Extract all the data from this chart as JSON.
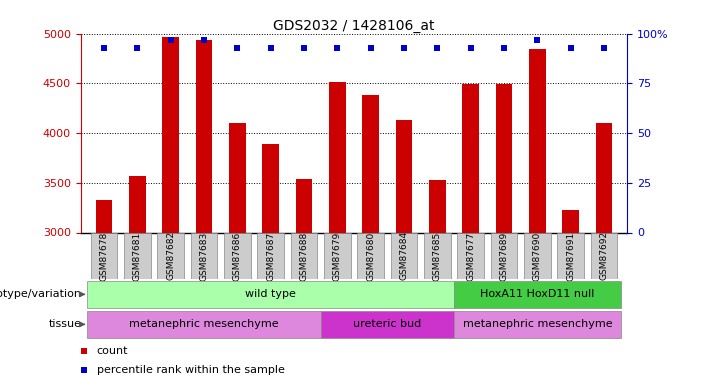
{
  "title": "GDS2032 / 1428106_at",
  "samples": [
    "GSM87678",
    "GSM87681",
    "GSM87682",
    "GSM87683",
    "GSM87686",
    "GSM87687",
    "GSM87688",
    "GSM87679",
    "GSM87680",
    "GSM87684",
    "GSM87685",
    "GSM87677",
    "GSM87689",
    "GSM87690",
    "GSM87691",
    "GSM87692"
  ],
  "counts": [
    3330,
    3570,
    4970,
    4940,
    4100,
    3890,
    3540,
    4510,
    4380,
    4130,
    3530,
    4490,
    4490,
    4850,
    3230,
    4100
  ],
  "percentile_ranks": [
    93,
    93,
    97,
    97,
    93,
    93,
    93,
    93,
    93,
    93,
    93,
    93,
    93,
    97,
    93,
    93
  ],
  "ymin": 3000,
  "ymax": 5000,
  "yticks": [
    3000,
    3500,
    4000,
    4500,
    5000
  ],
  "right_yticks_vals": [
    0,
    25,
    50,
    75,
    100
  ],
  "right_yticks_labels": [
    "0",
    "25",
    "50",
    "75",
    "100%"
  ],
  "bar_color": "#cc0000",
  "percentile_color": "#0000cc",
  "background_color": "#ffffff",
  "grid_color": "#000000",
  "left_label_color": "#cc0000",
  "right_label_color": "#0000cc",
  "title_color": "#000000",
  "bar_width": 0.5,
  "genotype_groups": [
    {
      "label": "wild type",
      "start": 0,
      "end": 10,
      "color": "#aaffaa"
    },
    {
      "label": "HoxA11 HoxD11 null",
      "start": 11,
      "end": 15,
      "color": "#44cc44"
    }
  ],
  "tissue_groups": [
    {
      "label": "metanephric mesenchyme",
      "start": 0,
      "end": 6,
      "color": "#dd88dd"
    },
    {
      "label": "ureteric bud",
      "start": 7,
      "end": 10,
      "color": "#cc33cc"
    },
    {
      "label": "metanephric mesenchyme",
      "start": 11,
      "end": 15,
      "color": "#dd88dd"
    }
  ],
  "legend_items": [
    {
      "color": "#cc0000",
      "label": "count"
    },
    {
      "color": "#0000cc",
      "label": "percentile rank within the sample"
    }
  ]
}
